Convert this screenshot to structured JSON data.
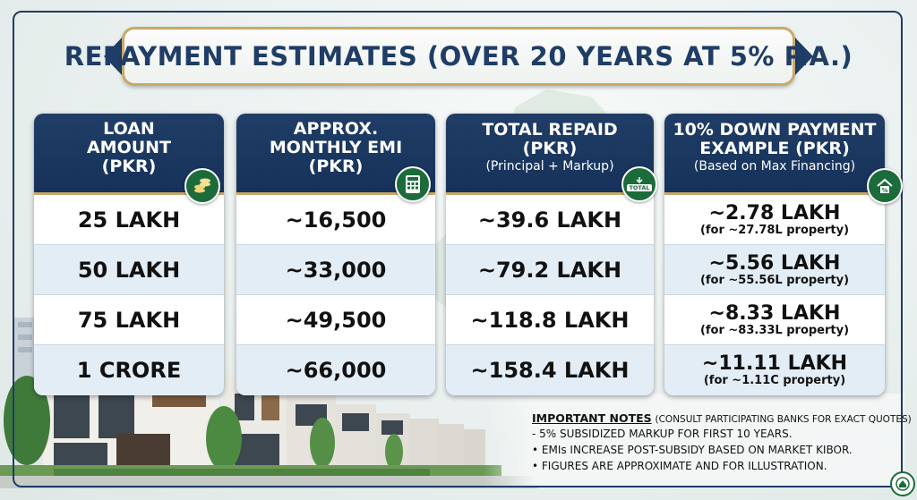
{
  "title": "REPAYMENT ESTIMATES (OVER 20 YEARS AT 5% P.A.)",
  "columns": [
    {
      "header": [
        "LOAN",
        "AMOUNT",
        "(PKR)"
      ],
      "icon": "coins-icon",
      "rows": [
        "25 LAKH",
        "50 LAKH",
        "75 LAKH",
        "1 CRORE"
      ]
    },
    {
      "header": [
        "APPROX.",
        "MONTHLY EMI",
        "(PKR)"
      ],
      "icon": "calculator-icon",
      "rows": [
        "~16,500",
        "~33,000",
        "~49,500",
        "~66,000"
      ]
    },
    {
      "header": [
        "TOTAL REPAID",
        "(PKR)"
      ],
      "subheader": "(Principal + Markup)",
      "icon": "total-icon",
      "icon_text": "TOTAL",
      "rows": [
        "~39.6 LAKH",
        "~79.2 LAKH",
        "~118.8 LAKH",
        "~158.4 LAKH"
      ]
    },
    {
      "header": [
        "10% DOWN PAYMENT",
        "EXAMPLE (PKR)"
      ],
      "subheader": "(Based on Max Financing)",
      "icon": "percent-house-icon",
      "rows": [
        {
          "main": "~2.78 LAKH",
          "note": "(for ~27.78L property)"
        },
        {
          "main": "~5.56 LAKH",
          "note": "(for ~55.56L property)"
        },
        {
          "main": "~8.33 LAKH",
          "note": "(for ~83.33L property)"
        },
        {
          "main": "~11.11 LAKH",
          "note": "(for ~1.11C property)"
        }
      ]
    }
  ],
  "notes": {
    "title": "IMPORTANT NOTES",
    "title_suffix": "(CONSULT PARTICIPATING BANKS FOR EXACT QUOTES)",
    "items": [
      "- 5% SUBSIDIZED MARKUP FOR FIRST 10 YEARS.",
      "• EMIs INCREASE POST-SUBSIDY BASED ON MARKET KIBOR.",
      "• FIGURES ARE APPROXIMATE AND FOR ILLUSTRATION."
    ]
  },
  "colors": {
    "navy": "#1f3d66",
    "gold": "#c9a968",
    "green": "#1c6b3a",
    "row_alt": "#e3edf6"
  }
}
